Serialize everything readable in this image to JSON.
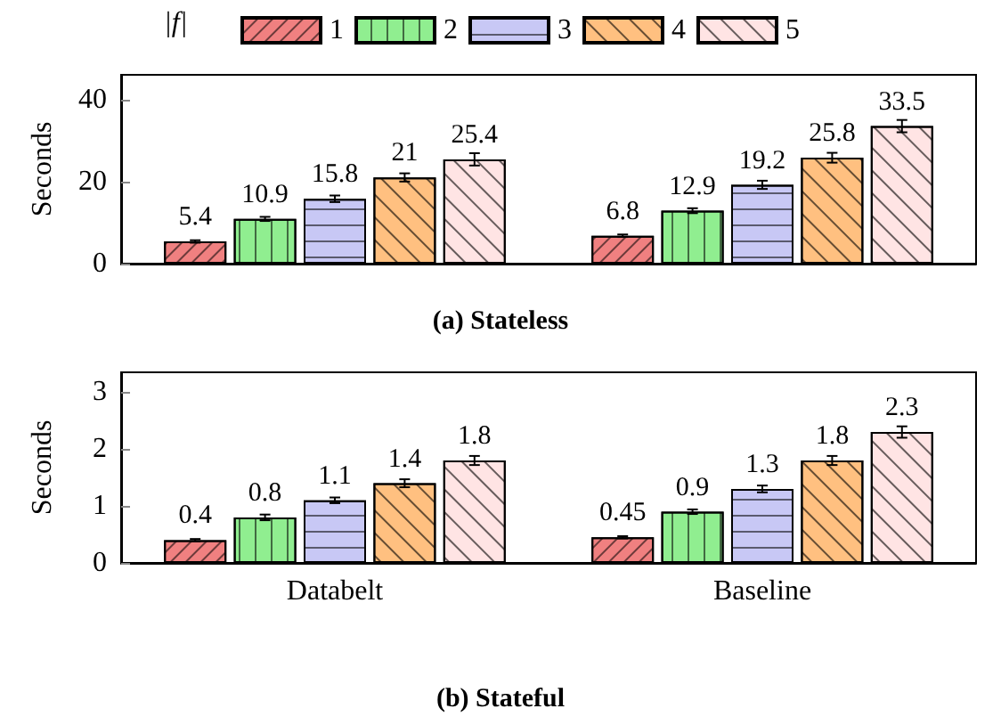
{
  "chart_data": [
    {
      "type": "bar",
      "title": "(a) Stateless",
      "ylabel": "Seconds",
      "legend_title": "|f|",
      "legend": "top",
      "categories": [
        null,
        null
      ],
      "data_labels": true,
      "ylim": [
        0,
        46
      ],
      "yticks": [
        0,
        20,
        40
      ],
      "series": [
        {
          "name": "1",
          "color": "#f08080",
          "values": [
            5.4,
            6.8
          ],
          "errors": [
            0.3,
            0.3
          ]
        },
        {
          "name": "2",
          "color": "#90ee90",
          "values": [
            10.9,
            12.9
          ],
          "errors": [
            0.5,
            0.6
          ]
        },
        {
          "name": "3",
          "color": "#c8c8f5",
          "values": [
            15.8,
            19.2
          ],
          "errors": [
            0.8,
            1
          ]
        },
        {
          "name": "4",
          "color": "#ffc080",
          "values": [
            21,
            25.8
          ],
          "errors": [
            1,
            1.2
          ]
        },
        {
          "name": "5",
          "color": "#ffe4e4",
          "values": [
            25.4,
            33.5
          ],
          "errors": [
            1.5,
            1.5
          ]
        }
      ]
    },
    {
      "type": "bar",
      "title": "(b) Stateful",
      "ylabel": "Seconds",
      "categories": [
        "Databelt",
        "Baseline"
      ],
      "data_labels": true,
      "ylim": [
        0,
        3.35
      ],
      "yticks": [
        0,
        1,
        2,
        3
      ],
      "series": [
        {
          "name": "1",
          "color": "#f08080",
          "values": [
            0.4,
            0.45
          ],
          "errors": [
            0.02,
            0.02
          ]
        },
        {
          "name": "2",
          "color": "#90ee90",
          "values": [
            0.8,
            0.9
          ],
          "errors": [
            0.05,
            0.04
          ]
        },
        {
          "name": "3",
          "color": "#c8c8f5",
          "values": [
            1.1,
            1.3
          ],
          "errors": [
            0.05,
            0.06
          ]
        },
        {
          "name": "4",
          "color": "#ffc080",
          "values": [
            1.4,
            1.8
          ],
          "errors": [
            0.07,
            0.08
          ]
        },
        {
          "name": "5",
          "color": "#ffe4e4",
          "values": [
            1.8,
            2.3
          ],
          "errors": [
            0.08,
            0.1
          ]
        }
      ]
    }
  ]
}
